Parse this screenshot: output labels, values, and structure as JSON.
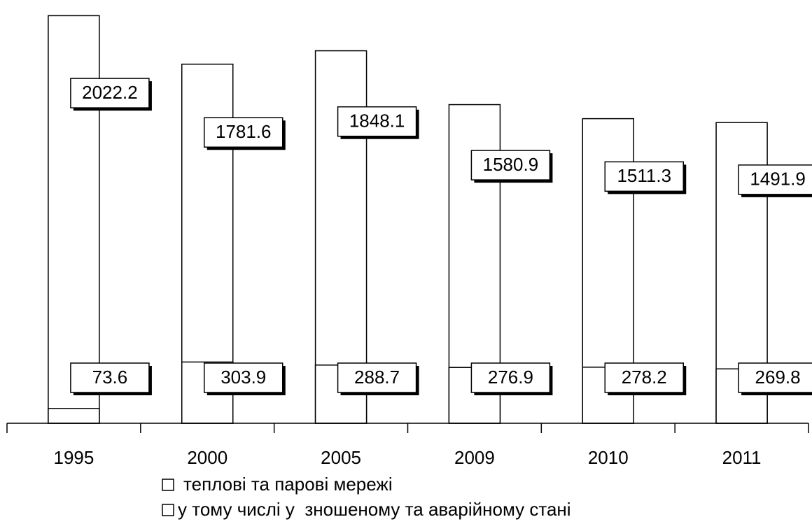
{
  "chart_data": {
    "type": "bar",
    "categories": [
      "1995",
      "2000",
      "2005",
      "2009",
      "2010",
      "2011"
    ],
    "series": [
      {
        "name": "теплові та парові мережі",
        "color": "#ffffff",
        "values": [
          2022.2,
          1781.6,
          1848.1,
          1580.9,
          1511.3,
          1491.9
        ]
      },
      {
        "name": "у тому числі у  зношеному та аварійному стані",
        "color": "#ffffff",
        "values": [
          73.6,
          303.9,
          288.7,
          276.9,
          278.2,
          269.8
        ]
      }
    ],
    "ylim": [
      0,
      2100
    ]
  }
}
